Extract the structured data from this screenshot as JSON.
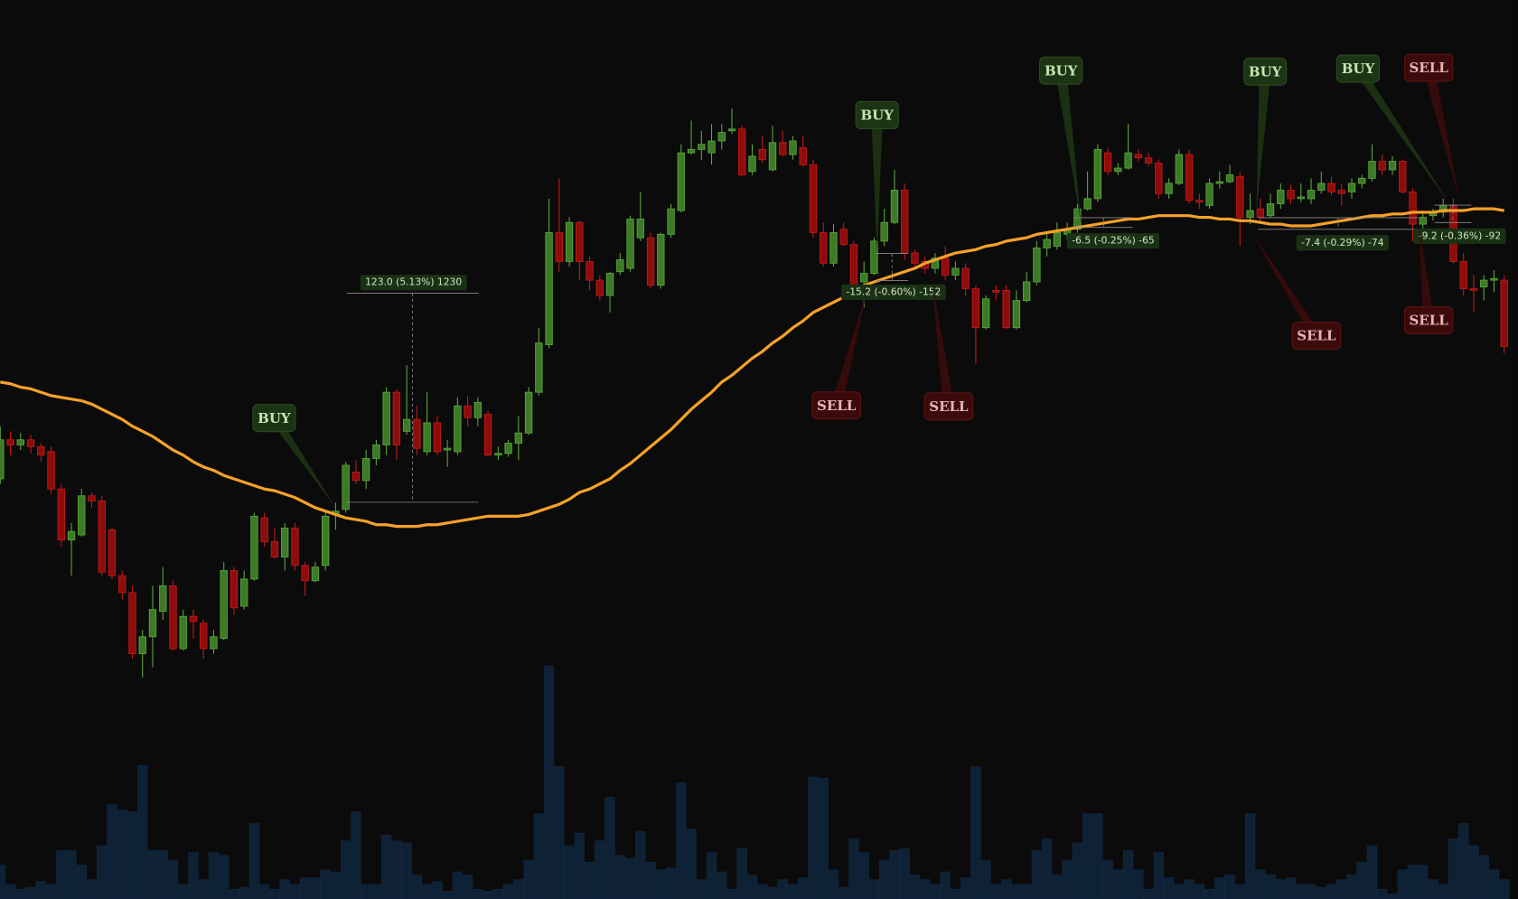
{
  "chart_data": {
    "type": "candlestick",
    "ylim": [
      2270,
      2694
    ],
    "up_color": "#3d7a26",
    "down_color": "#8e0c0c",
    "candles": [
      [
        2412,
        2443,
        2409,
        2435
      ],
      [
        2435,
        2440,
        2426,
        2432
      ],
      [
        2432,
        2439,
        2429,
        2435
      ],
      [
        2435,
        2438,
        2427,
        2431
      ],
      [
        2431,
        2433,
        2422,
        2426
      ],
      [
        2428,
        2431,
        2403,
        2406
      ],
      [
        2406,
        2409,
        2372,
        2376
      ],
      [
        2376,
        2386,
        2355,
        2381
      ],
      [
        2379,
        2406,
        2378,
        2402
      ],
      [
        2402,
        2404,
        2395,
        2399
      ],
      [
        2399,
        2402,
        2355,
        2357
      ],
      [
        2382,
        2383,
        2353,
        2355
      ],
      [
        2355,
        2358,
        2341,
        2345
      ],
      [
        2345,
        2349,
        2306,
        2309
      ],
      [
        2309,
        2323,
        2295,
        2319
      ],
      [
        2319,
        2349,
        2301,
        2335
      ],
      [
        2334,
        2360,
        2329,
        2349
      ],
      [
        2349,
        2352,
        2311,
        2312
      ],
      [
        2312,
        2335,
        2311,
        2331
      ],
      [
        2331,
        2335,
        2318,
        2328
      ],
      [
        2327,
        2329,
        2306,
        2312
      ],
      [
        2312,
        2323,
        2309,
        2319
      ],
      [
        2318,
        2363,
        2317,
        2358
      ],
      [
        2358,
        2360,
        2332,
        2336
      ],
      [
        2337,
        2358,
        2335,
        2353
      ],
      [
        2353,
        2392,
        2352,
        2390
      ],
      [
        2389,
        2392,
        2372,
        2375
      ],
      [
        2375,
        2383,
        2365,
        2366
      ],
      [
        2366,
        2386,
        2358,
        2383
      ],
      [
        2383,
        2386,
        2358,
        2361
      ],
      [
        2361,
        2363,
        2343,
        2352
      ],
      [
        2352,
        2363,
        2351,
        2360
      ],
      [
        2361,
        2392,
        2358,
        2390
      ],
      [
        2391,
        2398,
        2382,
        2393
      ],
      [
        2394,
        2422,
        2392,
        2420
      ],
      [
        2416,
        2423,
        2409,
        2411
      ],
      [
        2411,
        2429,
        2406,
        2424
      ],
      [
        2424,
        2435,
        2420,
        2432
      ],
      [
        2432,
        2466,
        2426,
        2463
      ],
      [
        2463,
        2465,
        2423,
        2432
      ],
      [
        2440,
        2479,
        2438,
        2447
      ],
      [
        2447,
        2455,
        2426,
        2430
      ],
      [
        2428,
        2463,
        2426,
        2445
      ],
      [
        2445,
        2449,
        2426,
        2428
      ],
      [
        2429,
        2435,
        2419,
        2430
      ],
      [
        2428,
        2460,
        2426,
        2455
      ],
      [
        2455,
        2461,
        2443,
        2448
      ],
      [
        2448,
        2460,
        2443,
        2457
      ],
      [
        2450,
        2452,
        2425,
        2426
      ],
      [
        2426,
        2431,
        2423,
        2427
      ],
      [
        2427,
        2435,
        2425,
        2433
      ],
      [
        2433,
        2449,
        2423,
        2439
      ],
      [
        2439,
        2466,
        2438,
        2463
      ],
      [
        2463,
        2501,
        2461,
        2492
      ],
      [
        2491,
        2577,
        2489,
        2557
      ],
      [
        2557,
        2589,
        2534,
        2540
      ],
      [
        2540,
        2566,
        2537,
        2563
      ],
      [
        2563,
        2564,
        2529,
        2540
      ],
      [
        2540,
        2543,
        2523,
        2529
      ],
      [
        2529,
        2532,
        2517,
        2520
      ],
      [
        2520,
        2534,
        2510,
        2533
      ],
      [
        2534,
        2545,
        2532,
        2541
      ],
      [
        2536,
        2567,
        2534,
        2565
      ],
      [
        2554,
        2581,
        2552,
        2565
      ],
      [
        2554,
        2557,
        2524,
        2526
      ],
      [
        2526,
        2557,
        2524,
        2556
      ],
      [
        2556,
        2574,
        2554,
        2571
      ],
      [
        2570,
        2609,
        2569,
        2604
      ],
      [
        2604,
        2623,
        2603,
        2606
      ],
      [
        2606,
        2617,
        2600,
        2609
      ],
      [
        2604,
        2621,
        2597,
        2611
      ],
      [
        2611,
        2621,
        2606,
        2616
      ],
      [
        2617,
        2630,
        2615,
        2618
      ],
      [
        2618,
        2620,
        2590,
        2591
      ],
      [
        2593,
        2609,
        2591,
        2602
      ],
      [
        2606,
        2614,
        2598,
        2600
      ],
      [
        2594,
        2620,
        2593,
        2610
      ],
      [
        2610,
        2617,
        2602,
        2603
      ],
      [
        2603,
        2614,
        2600,
        2611
      ],
      [
        2607,
        2614,
        2596,
        2597
      ],
      [
        2597,
        2600,
        2554,
        2557
      ],
      [
        2557,
        2563,
        2537,
        2539
      ],
      [
        2539,
        2562,
        2537,
        2557
      ],
      [
        2559,
        2563,
        2549,
        2550
      ],
      [
        2550,
        2552,
        2522,
        2523
      ],
      [
        2528,
        2540,
        2513,
        2533
      ],
      [
        2533,
        2554,
        2532,
        2552
      ],
      [
        2552,
        2571,
        2549,
        2563
      ],
      [
        2563,
        2594,
        2562,
        2582
      ],
      [
        2582,
        2586,
        2541,
        2545
      ],
      [
        2545,
        2547,
        2536,
        2539
      ],
      [
        2540,
        2543,
        2533,
        2536
      ],
      [
        2536,
        2545,
        2533,
        2542
      ],
      [
        2542,
        2549,
        2529,
        2532
      ],
      [
        2532,
        2540,
        2529,
        2536
      ],
      [
        2536,
        2539,
        2520,
        2524
      ],
      [
        2524,
        2526,
        2480,
        2501
      ],
      [
        2501,
        2520,
        2500,
        2518
      ],
      [
        2523,
        2526,
        2517,
        2522
      ],
      [
        2523,
        2526,
        2500,
        2501
      ],
      [
        2501,
        2523,
        2500,
        2517
      ],
      [
        2517,
        2534,
        2516,
        2528
      ],
      [
        2528,
        2552,
        2526,
        2548
      ],
      [
        2548,
        2557,
        2543,
        2553
      ],
      [
        2549,
        2563,
        2547,
        2557
      ],
      [
        2556,
        2563,
        2553,
        2559
      ],
      [
        2559,
        2574,
        2557,
        2571
      ],
      [
        2571,
        2593,
        2570,
        2577
      ],
      [
        2577,
        2609,
        2575,
        2606
      ],
      [
        2604,
        2607,
        2591,
        2593
      ],
      [
        2593,
        2598,
        2591,
        2595
      ],
      [
        2595,
        2621,
        2594,
        2604
      ],
      [
        2603,
        2606,
        2599,
        2601
      ],
      [
        2601,
        2604,
        2596,
        2598
      ],
      [
        2598,
        2600,
        2577,
        2580
      ],
      [
        2580,
        2589,
        2577,
        2586
      ],
      [
        2586,
        2606,
        2585,
        2603
      ],
      [
        2603,
        2606,
        2574,
        2576
      ],
      [
        2576,
        2580,
        2571,
        2575
      ],
      [
        2573,
        2589,
        2571,
        2586
      ],
      [
        2586,
        2593,
        2583,
        2587
      ],
      [
        2587,
        2597,
        2586,
        2591
      ],
      [
        2590,
        2593,
        2549,
        2566
      ],
      [
        2566,
        2580,
        2562,
        2570
      ],
      [
        2571,
        2577,
        2563,
        2566
      ],
      [
        2567,
        2580,
        2566,
        2574
      ],
      [
        2574,
        2586,
        2571,
        2582
      ],
      [
        2582,
        2585,
        2574,
        2577
      ],
      [
        2577,
        2586,
        2575,
        2578
      ],
      [
        2577,
        2589,
        2574,
        2582
      ],
      [
        2582,
        2593,
        2580,
        2586
      ],
      [
        2586,
        2590,
        2579,
        2581
      ],
      [
        2582,
        2586,
        2573,
        2580
      ],
      [
        2581,
        2589,
        2577,
        2586
      ],
      [
        2586,
        2591,
        2583,
        2589
      ],
      [
        2589,
        2609,
        2587,
        2599
      ],
      [
        2599,
        2603,
        2591,
        2594
      ],
      [
        2594,
        2602,
        2591,
        2599
      ],
      [
        2599,
        2600,
        2580,
        2581
      ],
      [
        2581,
        2583,
        2552,
        2562
      ],
      [
        2562,
        2570,
        2559,
        2566
      ],
      [
        2567,
        2571,
        2564,
        2569
      ],
      [
        2569,
        2577,
        2566,
        2573
      ],
      [
        2573,
        2577,
        2539,
        2540
      ],
      [
        2540,
        2545,
        2520,
        2524
      ],
      [
        2524,
        2532,
        2510,
        2523
      ],
      [
        2525,
        2532,
        2517,
        2529
      ],
      [
        2529,
        2535,
        2522,
        2530
      ],
      [
        2529,
        2532,
        2486,
        2490
      ]
    ],
    "ma": {
      "color": "#f7a128",
      "values": [
        2469,
        2468,
        2466,
        2465,
        2463,
        2461,
        2460,
        2459,
        2458,
        2456,
        2453,
        2450,
        2447,
        2443,
        2440,
        2437,
        2433,
        2429,
        2426,
        2422,
        2419,
        2417,
        2414,
        2412,
        2410,
        2408,
        2406,
        2405,
        2403,
        2401,
        2398,
        2395,
        2393,
        2391,
        2389,
        2388,
        2387,
        2385,
        2385,
        2384,
        2384,
        2384,
        2385,
        2385,
        2386,
        2387,
        2388,
        2389,
        2390,
        2390,
        2390,
        2390,
        2391,
        2393,
        2395,
        2397,
        2400,
        2404,
        2406,
        2409,
        2412,
        2417,
        2421,
        2426,
        2431,
        2436,
        2441,
        2447,
        2453,
        2458,
        2463,
        2469,
        2473,
        2478,
        2483,
        2487,
        2492,
        2496,
        2501,
        2505,
        2510,
        2513,
        2516,
        2519,
        2522,
        2526,
        2528,
        2530,
        2532,
        2534,
        2536,
        2539,
        2541,
        2543,
        2545,
        2546,
        2547,
        2549,
        2550,
        2552,
        2553,
        2554,
        2556,
        2557,
        2558,
        2559,
        2560,
        2561,
        2562,
        2563,
        2564,
        2565,
        2565,
        2566,
        2567,
        2567,
        2567,
        2567,
        2566,
        2566,
        2565,
        2565,
        2564,
        2564,
        2563,
        2562,
        2562,
        2561,
        2561,
        2561,
        2562,
        2563,
        2564,
        2565,
        2566,
        2567,
        2567,
        2568,
        2568,
        2569,
        2569,
        2569,
        2570,
        2570,
        2570,
        2571,
        2571,
        2571,
        2570
      ]
    },
    "volume": {
      "color": "#0e2135",
      "ylim": [
        0,
        250
      ],
      "values": [
        35,
        15,
        10,
        12,
        18,
        15,
        50,
        50,
        35,
        20,
        55,
        98,
        92,
        90,
        138,
        50,
        50,
        40,
        15,
        48,
        20,
        48,
        45,
        10,
        12,
        78,
        15,
        10,
        20,
        15,
        22,
        22,
        30,
        28,
        60,
        90,
        15,
        15,
        66,
        60,
        58,
        25,
        15,
        18,
        8,
        28,
        25,
        10,
        8,
        10,
        15,
        20,
        40,
        88,
        241,
        137,
        55,
        68,
        38,
        60,
        105,
        45,
        42,
        70,
        38,
        30,
        32,
        120,
        72,
        20,
        48,
        28,
        10,
        52,
        25,
        15,
        12,
        20,
        15,
        22,
        126,
        125,
        30,
        12,
        62,
        48,
        20,
        40,
        50,
        52,
        25,
        20,
        15,
        28,
        10,
        22,
        137,
        40,
        15,
        20,
        15,
        15,
        50,
        62,
        25,
        40,
        58,
        88,
        88,
        40,
        30,
        50,
        30,
        10,
        48,
        22,
        15,
        20,
        15,
        10,
        22,
        25,
        15,
        88,
        30,
        25,
        20,
        22,
        15,
        15,
        12,
        15,
        20,
        25,
        38,
        55,
        10,
        5,
        30,
        35,
        35,
        20,
        15,
        62,
        78,
        55,
        45,
        30,
        20
      ]
    },
    "signals": [
      "BUY",
      "SELL",
      "BUY",
      "SELL",
      "BUY",
      "BUY",
      "SELL",
      "BUY",
      "SELL",
      "SELL"
    ],
    "measurements": [
      "123.0 (5.13%) 1230",
      "-15.2 (-0.60%) -152",
      "-6.5 (-0.25%) -65",
      "-7.4 (-0.29%) -74",
      "-9.2 (-0.36%) -92"
    ]
  }
}
